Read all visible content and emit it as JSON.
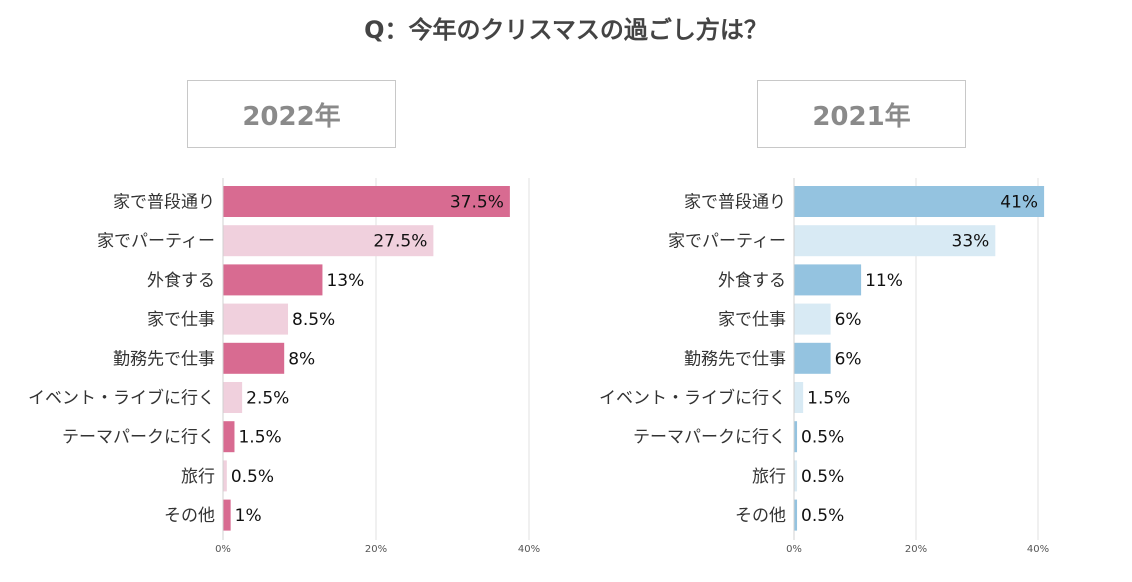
{
  "page": {
    "question": "Q：今年のクリスマスの過ごし方は？"
  },
  "chart_data": [
    {
      "type": "bar",
      "orientation": "horizontal",
      "title": "2022年",
      "categories": [
        "家で普段通り",
        "家でパーティー",
        "外食する",
        "家で仕事",
        "勤務先で仕事",
        "イベント・ライブに行く",
        "テーマパークに行く",
        "旅行",
        "その他"
      ],
      "values": [
        37.5,
        27.5,
        13,
        8.5,
        8,
        2.5,
        1.5,
        0.5,
        1
      ],
      "value_labels": [
        "37.5%",
        "27.5%",
        "13%",
        "8.5%",
        "8%",
        "2.5%",
        "1.5%",
        "0.5%",
        "1%"
      ],
      "xlim": [
        0,
        40
      ],
      "ticks": [
        0,
        20,
        40
      ],
      "tick_labels": [
        "0%",
        "20%",
        "40%"
      ],
      "colors": [
        "#d86b91",
        "#f0d0dd"
      ],
      "grid": true
    },
    {
      "type": "bar",
      "orientation": "horizontal",
      "title": "2021年",
      "categories": [
        "家で普段通り",
        "家でパーティー",
        "外食する",
        "家で仕事",
        "勤務先で仕事",
        "イベント・ライブに行く",
        "テーマパークに行く",
        "旅行",
        "その他"
      ],
      "values": [
        41,
        33,
        11,
        6,
        6,
        1.5,
        0.5,
        0.5,
        0.5
      ],
      "value_labels": [
        "41%",
        "33%",
        "11%",
        "6%",
        "6%",
        "1.5%",
        "0.5%",
        "0.5%",
        "0.5%"
      ],
      "xlim": [
        0,
        40
      ],
      "ticks": [
        0,
        20,
        40
      ],
      "tick_labels": [
        "0%",
        "20%",
        "40%"
      ],
      "colors": [
        "#94c3e0",
        "#d8eaf4"
      ],
      "grid": true
    }
  ]
}
